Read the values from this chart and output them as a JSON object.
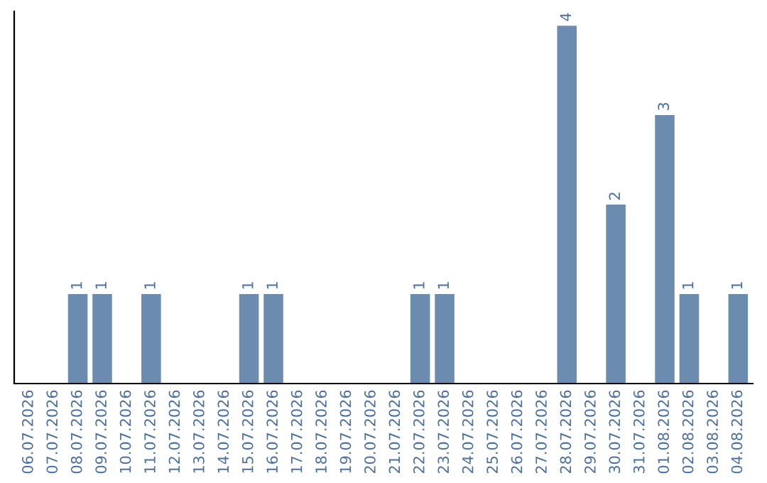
{
  "chart_data": {
    "type": "bar",
    "categories": [
      "06.07.2026",
      "07.07.2026",
      "08.07.2026",
      "09.07.2026",
      "10.07.2026",
      "11.07.2026",
      "12.07.2026",
      "13.07.2026",
      "14.07.2026",
      "15.07.2026",
      "16.07.2026",
      "17.07.2026",
      "18.07.2026",
      "19.07.2026",
      "20.07.2026",
      "21.07.2026",
      "22.07.2026",
      "23.07.2026",
      "24.07.2026",
      "25.07.2026",
      "26.07.2026",
      "27.07.2026",
      "28.07.2026",
      "29.07.2026",
      "30.07.2026",
      "31.07.2026",
      "01.08.2026",
      "02.08.2026",
      "03.08.2026",
      "04.08.2026"
    ],
    "values": [
      0,
      0,
      1,
      1,
      0,
      1,
      0,
      0,
      0,
      1,
      1,
      0,
      0,
      0,
      0,
      0,
      1,
      1,
      0,
      0,
      0,
      0,
      4,
      0,
      2,
      0,
      3,
      1,
      0,
      1
    ],
    "value_labels": [
      null,
      null,
      "1",
      "1",
      null,
      "1",
      null,
      null,
      null,
      "1",
      "1",
      null,
      null,
      null,
      null,
      null,
      "1",
      "1",
      null,
      null,
      null,
      null,
      "4",
      null,
      "2",
      null,
      "3",
      "1",
      null,
      "1"
    ],
    "color": "#6b8cae",
    "tick_labels": "x",
    "grid": false,
    "legend": false
  }
}
